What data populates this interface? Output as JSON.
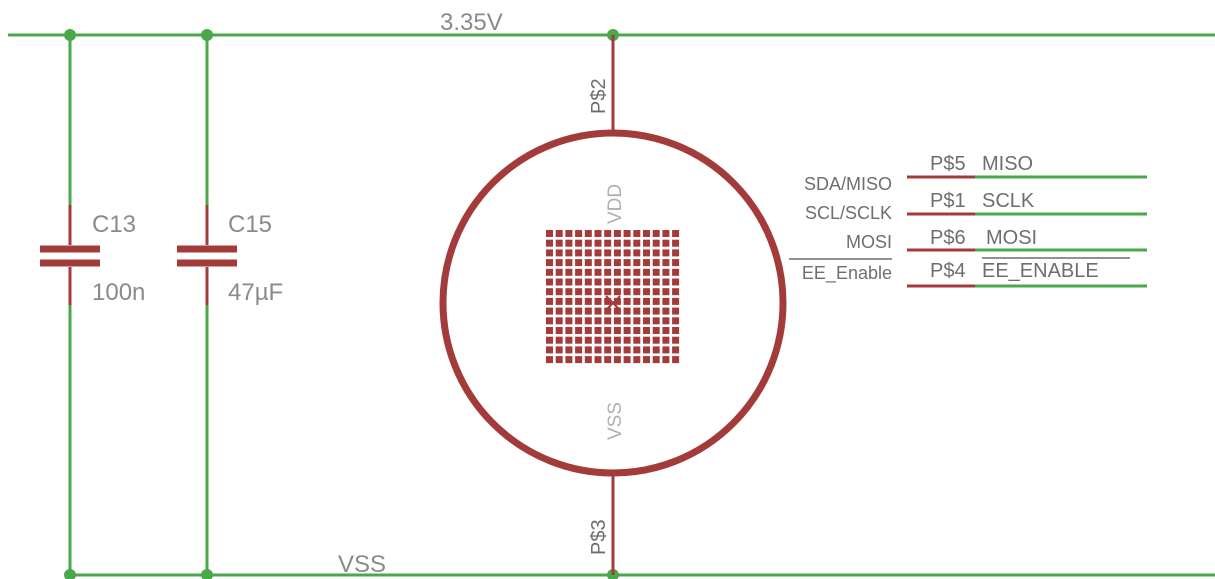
{
  "colors": {
    "wire": "#4aa84a",
    "component": "#a33b3b",
    "background": "#ffffff",
    "label": "#8a8a8a",
    "pin_text": "#6e6e6e",
    "inner_text": "#b0b0b0"
  },
  "nets": {
    "supply": "3.35V",
    "ground": "VSS"
  },
  "capacitors": [
    {
      "name": "C13",
      "value": "100n"
    },
    {
      "name": "C15",
      "value": "47µF"
    }
  ],
  "sensor": {
    "vdd_label": "VDD",
    "vss_label": "VSS",
    "pin_vdd": "P$2",
    "pin_vss": "P$3",
    "grid_rows": 14,
    "grid_cols": 14
  },
  "pins": [
    {
      "pad": "P$5",
      "func": "MISO",
      "signal": "SDA/MISO"
    },
    {
      "pad": "P$1",
      "func": "SCLK",
      "signal": "SCL/SCLK"
    },
    {
      "pad": "P$6",
      "func": "MOSI",
      "signal": "MOSI"
    },
    {
      "pad": "P$4",
      "func": "EE_ENABLE",
      "signal": "EE_Enable",
      "overbar": true
    }
  ]
}
